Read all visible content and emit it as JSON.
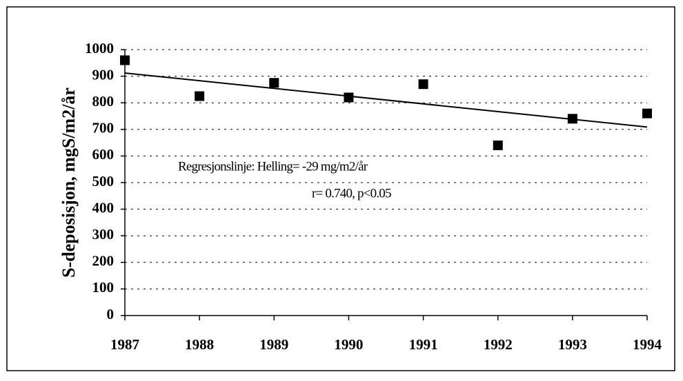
{
  "chart_data": {
    "type": "scatter",
    "ylabel": "S-deposisjon, mgS/m2/år",
    "annotations": [
      "Regresjonslinje: Helling= -29 mg/m2/år",
      "r= 0.740,  p<0.05"
    ],
    "x": [
      1987,
      1988,
      1989,
      1990,
      1991,
      1992,
      1993,
      1994
    ],
    "values": [
      960,
      825,
      875,
      820,
      870,
      640,
      740,
      760
    ],
    "color": "#000000",
    "trend": {
      "x": [
        1987,
        1994
      ],
      "y": [
        912,
        709
      ]
    },
    "xlim": [
      1987,
      1994
    ],
    "xticks": [
      1987,
      1988,
      1989,
      1990,
      1991,
      1992,
      1993,
      1994
    ],
    "ylim": [
      0,
      1000
    ],
    "yticks": [
      0,
      100,
      200,
      300,
      400,
      500,
      600,
      700,
      800,
      900,
      1000
    ],
    "grid": true
  }
}
